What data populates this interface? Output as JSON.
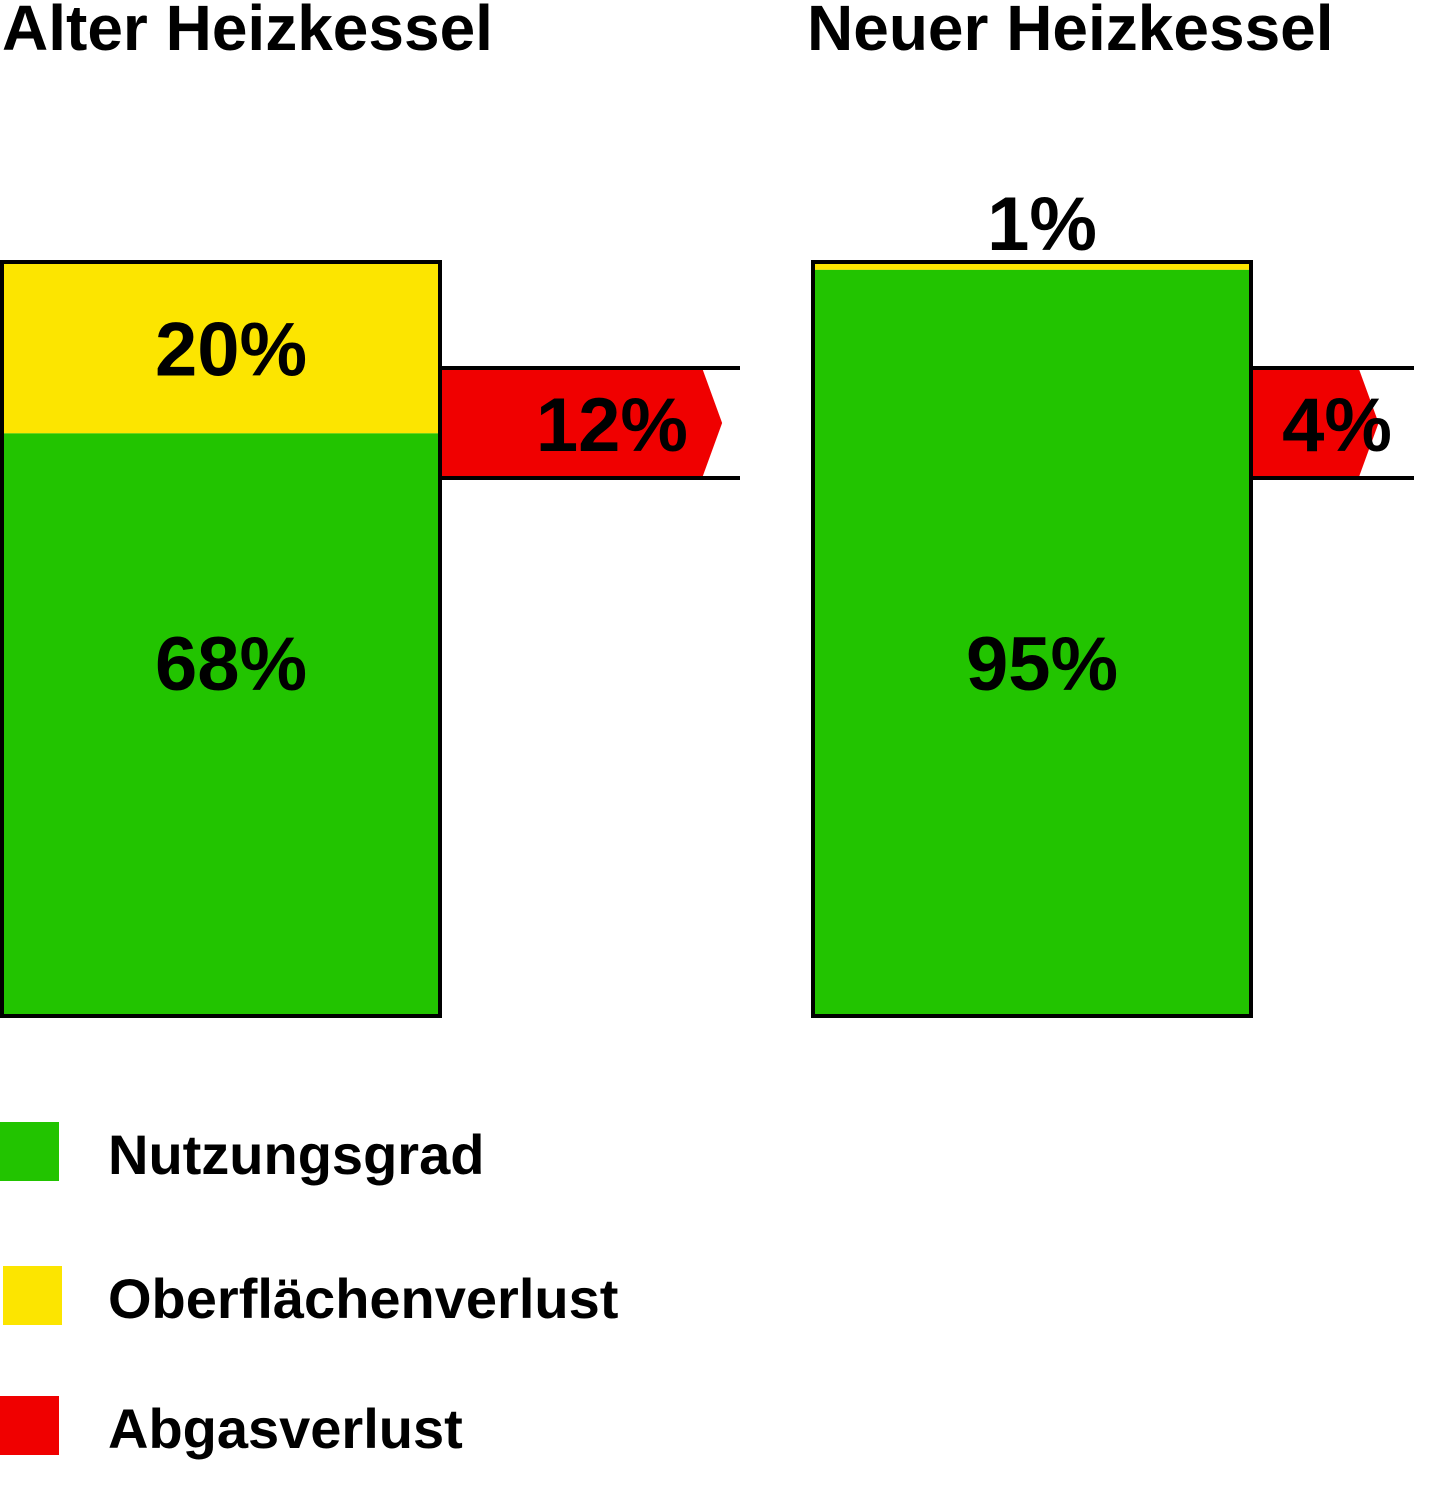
{
  "chart_data": {
    "type": "bar",
    "stacked": true,
    "categories": [
      "Alter Heizkessel",
      "Neuer Heizkessel"
    ],
    "series": [
      {
        "name": "Nutzungsgrad",
        "color": "#22c400",
        "values": [
          68,
          95
        ],
        "labels": [
          "68%",
          "95%"
        ]
      },
      {
        "name": "Oberflächenverlust",
        "color": "#fce500",
        "values": [
          20,
          1
        ],
        "labels": [
          "20%",
          "1%"
        ]
      },
      {
        "name": "Abgasverlust",
        "color": "#f00000",
        "values": [
          12,
          4
        ],
        "labels": [
          "12%",
          "4%"
        ]
      }
    ],
    "legend": {
      "position": "bottom-left"
    }
  }
}
